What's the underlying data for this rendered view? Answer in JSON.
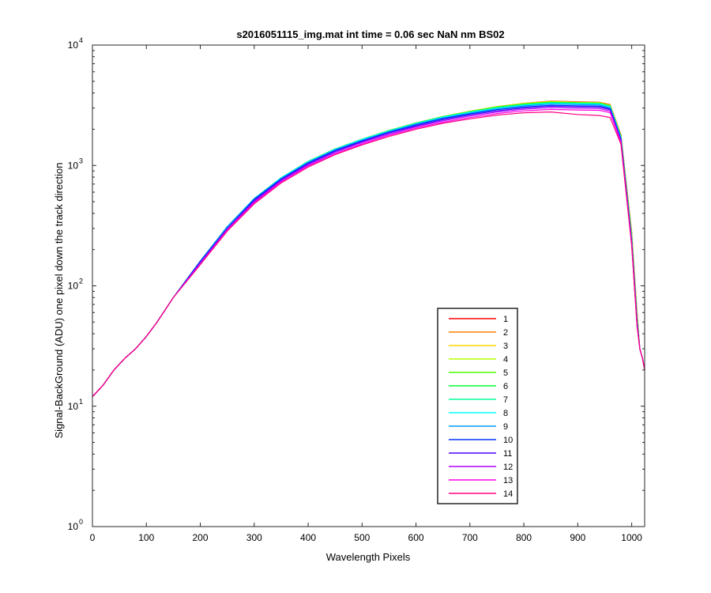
{
  "chart_data": {
    "type": "line",
    "title": "s2016051115_img.mat int time = 0.06 sec  NaN nm BS02",
    "xlabel": "Wavelength Pixels",
    "ylabel": "Signal-BackGround (ADU) one pixel down the track direction",
    "xlim": [
      0,
      1024
    ],
    "ylim": [
      1,
      10000
    ],
    "yscale": "log",
    "grid": false,
    "legend_position": "lower-right",
    "x_ticks": [
      0,
      100,
      200,
      300,
      400,
      500,
      600,
      700,
      800,
      900,
      1000
    ],
    "x_tick_labels": [
      "0",
      "100",
      "200",
      "300",
      "400",
      "500",
      "600",
      "700",
      "800",
      "900",
      "1000"
    ],
    "y_ticks": [
      1,
      10,
      100,
      1000,
      10000
    ],
    "y_tick_labels": [
      {
        "base": "10",
        "exp": "0"
      },
      {
        "base": "10",
        "exp": "1"
      },
      {
        "base": "10",
        "exp": "2"
      },
      {
        "base": "10",
        "exp": "3"
      },
      {
        "base": "10",
        "exp": "4"
      }
    ],
    "x": [
      0,
      20,
      40,
      60,
      80,
      100,
      120,
      150,
      200,
      250,
      300,
      350,
      400,
      450,
      500,
      550,
      600,
      650,
      700,
      750,
      800,
      850,
      900,
      940,
      960,
      980,
      1000,
      1010,
      1015,
      1020,
      1024
    ],
    "series": [
      {
        "name": "1",
        "color": "#ff0000",
        "values": [
          12,
          15,
          20,
          25,
          30,
          38,
          50,
          80,
          160,
          310,
          530,
          790,
          1080,
          1370,
          1650,
          1950,
          2250,
          2550,
          2820,
          3080,
          3280,
          3420,
          3380,
          3350,
          3200,
          1800,
          280,
          60,
          30,
          25,
          20
        ]
      },
      {
        "name": "2",
        "color": "#ff7f00",
        "values": [
          12,
          15,
          20,
          25,
          30,
          38,
          50,
          80,
          160,
          310,
          530,
          790,
          1080,
          1370,
          1650,
          1950,
          2250,
          2550,
          2820,
          3080,
          3280,
          3420,
          3360,
          3340,
          3180,
          1780,
          275,
          58,
          30,
          25,
          20
        ]
      },
      {
        "name": "3",
        "color": "#ffd500",
        "values": [
          12,
          15,
          20,
          25,
          30,
          38,
          50,
          80,
          160,
          310,
          530,
          790,
          1080,
          1370,
          1650,
          1950,
          2250,
          2550,
          2820,
          3080,
          3280,
          3400,
          3350,
          3330,
          3170,
          1770,
          270,
          57,
          30,
          25,
          20
        ]
      },
      {
        "name": "4",
        "color": "#b6ff00",
        "values": [
          12,
          15,
          20,
          25,
          30,
          38,
          50,
          80,
          160,
          310,
          530,
          790,
          1080,
          1370,
          1650,
          1950,
          2250,
          2550,
          2820,
          3080,
          3260,
          3380,
          3330,
          3310,
          3150,
          1760,
          265,
          56,
          30,
          25,
          20
        ]
      },
      {
        "name": "5",
        "color": "#4dff00",
        "values": [
          12,
          15,
          20,
          25,
          30,
          38,
          50,
          80,
          160,
          310,
          530,
          790,
          1080,
          1370,
          1650,
          1950,
          2250,
          2550,
          2800,
          3060,
          3240,
          3360,
          3320,
          3300,
          3140,
          1750,
          260,
          55,
          30,
          25,
          20
        ]
      },
      {
        "name": "6",
        "color": "#00ff33",
        "values": [
          12,
          15,
          20,
          25,
          30,
          38,
          50,
          80,
          160,
          310,
          530,
          790,
          1080,
          1370,
          1650,
          1950,
          2250,
          2540,
          2790,
          3040,
          3220,
          3340,
          3300,
          3280,
          3120,
          1740,
          255,
          54,
          30,
          25,
          20
        ]
      },
      {
        "name": "7",
        "color": "#00ff99",
        "values": [
          12,
          15,
          20,
          25,
          30,
          38,
          50,
          80,
          160,
          310,
          530,
          790,
          1080,
          1370,
          1650,
          1940,
          2240,
          2530,
          2780,
          3020,
          3200,
          3310,
          3280,
          3260,
          3100,
          1720,
          250,
          53,
          30,
          25,
          20
        ]
      },
      {
        "name": "8",
        "color": "#00ffff",
        "values": [
          12,
          15,
          20,
          25,
          30,
          38,
          50,
          80,
          160,
          310,
          530,
          790,
          1070,
          1360,
          1640,
          1930,
          2220,
          2510,
          2750,
          2990,
          3160,
          3270,
          3240,
          3220,
          3060,
          1700,
          245,
          52,
          30,
          25,
          20
        ]
      },
      {
        "name": "9",
        "color": "#0099ff",
        "values": [
          12,
          15,
          20,
          25,
          30,
          38,
          50,
          80,
          160,
          310,
          530,
          780,
          1060,
          1350,
          1620,
          1910,
          2200,
          2480,
          2720,
          2950,
          3120,
          3230,
          3200,
          3180,
          3020,
          1680,
          240,
          51,
          30,
          25,
          20
        ]
      },
      {
        "name": "10",
        "color": "#0033ff",
        "values": [
          12,
          15,
          20,
          25,
          30,
          38,
          50,
          80,
          160,
          300,
          520,
          770,
          1050,
          1330,
          1600,
          1890,
          2170,
          2450,
          2680,
          2900,
          3060,
          3160,
          3130,
          3110,
          2960,
          1650,
          235,
          50,
          30,
          25,
          20
        ]
      },
      {
        "name": "11",
        "color": "#4d00ff",
        "values": [
          12,
          15,
          20,
          25,
          30,
          38,
          50,
          80,
          155,
          300,
          510,
          760,
          1030,
          1310,
          1580,
          1860,
          2130,
          2400,
          2630,
          2840,
          3000,
          3100,
          3070,
          3050,
          2900,
          1620,
          230,
          49,
          30,
          25,
          20
        ]
      },
      {
        "name": "12",
        "color": "#b300ff",
        "values": [
          12,
          15,
          20,
          25,
          30,
          38,
          50,
          80,
          155,
          295,
          500,
          745,
          1010,
          1280,
          1550,
          1820,
          2090,
          2350,
          2570,
          2780,
          2930,
          3020,
          2990,
          2970,
          2830,
          1590,
          225,
          48,
          30,
          25,
          20
        ]
      },
      {
        "name": "13",
        "color": "#ff00e6",
        "values": [
          12,
          15,
          20,
          25,
          30,
          38,
          50,
          80,
          150,
          290,
          490,
          730,
          990,
          1250,
          1510,
          1780,
          2040,
          2290,
          2500,
          2700,
          2840,
          2920,
          2890,
          2870,
          2740,
          1550,
          220,
          47,
          30,
          25,
          20
        ]
      },
      {
        "name": "14",
        "color": "#ff0080",
        "values": [
          12,
          15,
          20,
          25,
          30,
          38,
          50,
          80,
          150,
          285,
          480,
          715,
          970,
          1230,
          1480,
          1740,
          2000,
          2240,
          2440,
          2620,
          2740,
          2780,
          2650,
          2600,
          2500,
          1500,
          215,
          46,
          30,
          25,
          20
        ]
      }
    ]
  }
}
